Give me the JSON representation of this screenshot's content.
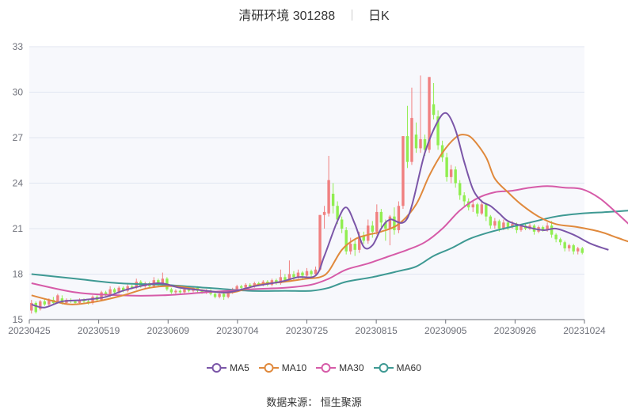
{
  "title": {
    "name": "清研环境",
    "code": "301288",
    "period": "日K"
  },
  "legend": [
    {
      "key": "ma5",
      "label": "MA5",
      "color": "#7b56a8"
    },
    {
      "key": "ma10",
      "label": "MA10",
      "color": "#e0893c"
    },
    {
      "key": "ma30",
      "label": "MA30",
      "color": "#d65ba8"
    },
    {
      "key": "ma60",
      "label": "MA60",
      "color": "#3e9993"
    }
  ],
  "source": "数据来源：  恒生聚源",
  "chart_data": {
    "type": "candlestick",
    "ylim": [
      15,
      33
    ],
    "yticks": [
      15,
      18,
      21,
      24,
      27,
      30,
      33
    ],
    "xticks": [
      "20230425",
      "20230519",
      "20230609",
      "20230704",
      "20230725",
      "20230815",
      "20230905",
      "20230926",
      "20231024"
    ],
    "up_color": "#f08080",
    "down_color": "#90ee50",
    "grid": true,
    "legend_position": "bottom",
    "candles": [
      [
        15.6,
        16.1,
        16.3,
        15.4
      ],
      [
        16.1,
        15.5,
        16.2,
        15.4
      ],
      [
        15.7,
        16.2,
        16.3,
        15.6
      ],
      [
        16.2,
        16.0,
        16.4,
        15.9
      ],
      [
        16.0,
        16.3,
        16.4,
        15.9
      ],
      [
        16.3,
        16.1,
        16.5,
        16.0
      ],
      [
        16.2,
        16.6,
        16.7,
        16.1
      ],
      [
        16.4,
        16.1,
        16.6,
        16.0
      ],
      [
        16.1,
        16.3,
        16.4,
        16.0
      ],
      [
        16.3,
        16.2,
        16.4,
        16.1
      ],
      [
        16.2,
        16.1,
        16.3,
        16.0
      ],
      [
        16.1,
        16.3,
        16.4,
        16.0
      ],
      [
        16.3,
        16.2,
        16.4,
        16.1
      ],
      [
        16.2,
        16.1,
        16.3,
        16.0
      ],
      [
        16.1,
        16.5,
        16.6,
        16.0
      ],
      [
        16.5,
        16.3,
        16.6,
        16.2
      ],
      [
        16.3,
        16.8,
        16.9,
        16.2
      ],
      [
        16.8,
        16.6,
        16.9,
        16.5
      ],
      [
        16.6,
        17.0,
        17.2,
        16.5
      ],
      [
        17.0,
        16.8,
        17.1,
        16.7
      ],
      [
        16.8,
        17.1,
        17.2,
        16.7
      ],
      [
        17.1,
        16.9,
        17.2,
        16.8
      ],
      [
        16.9,
        17.2,
        17.4,
        16.8
      ],
      [
        17.2,
        17.1,
        17.3,
        17.0
      ],
      [
        17.1,
        17.5,
        17.7,
        17.0
      ],
      [
        17.5,
        17.2,
        17.6,
        17.1
      ],
      [
        17.2,
        17.4,
        17.5,
        17.1
      ],
      [
        17.4,
        17.2,
        17.5,
        17.1
      ],
      [
        17.2,
        17.6,
        17.8,
        17.1
      ],
      [
        17.6,
        17.3,
        17.7,
        17.2
      ],
      [
        17.3,
        17.7,
        18.1,
        17.2
      ],
      [
        17.7,
        17.0,
        17.8,
        16.9
      ],
      [
        17.0,
        16.8,
        17.1,
        16.7
      ],
      [
        16.8,
        16.9,
        17.0,
        16.7
      ],
      [
        16.9,
        16.8,
        17.0,
        16.7
      ],
      [
        16.8,
        17.0,
        17.1,
        16.7
      ],
      [
        17.0,
        16.9,
        17.1,
        16.8
      ],
      [
        16.9,
        17.1,
        17.2,
        16.8
      ],
      [
        17.1,
        16.9,
        17.2,
        16.8
      ],
      [
        16.9,
        16.8,
        17.0,
        16.7
      ],
      [
        16.8,
        16.9,
        17.0,
        16.7
      ],
      [
        16.9,
        16.7,
        17.0,
        16.6
      ],
      [
        16.7,
        16.5,
        16.8,
        16.4
      ],
      [
        16.5,
        16.7,
        16.8,
        16.4
      ],
      [
        16.7,
        16.5,
        16.8,
        16.3
      ],
      [
        16.5,
        16.8,
        16.9,
        16.4
      ],
      [
        16.8,
        17.0,
        17.1,
        16.7
      ],
      [
        17.0,
        17.2,
        17.3,
        16.9
      ],
      [
        17.2,
        17.1,
        17.3,
        17.0
      ],
      [
        17.1,
        17.3,
        17.4,
        17.0
      ],
      [
        17.3,
        17.2,
        17.4,
        17.1
      ],
      [
        17.2,
        17.4,
        17.5,
        17.1
      ],
      [
        17.4,
        17.3,
        17.5,
        17.2
      ],
      [
        17.3,
        17.5,
        17.6,
        17.2
      ],
      [
        17.5,
        17.3,
        17.6,
        17.2
      ],
      [
        17.3,
        17.6,
        17.7,
        17.2
      ],
      [
        17.6,
        17.4,
        17.7,
        17.3
      ],
      [
        17.4,
        17.8,
        18.3,
        17.3
      ],
      [
        17.8,
        17.6,
        18.0,
        17.5
      ],
      [
        17.6,
        18.0,
        18.9,
        17.5
      ],
      [
        18.0,
        17.8,
        18.2,
        17.6
      ],
      [
        17.8,
        18.1,
        18.3,
        17.7
      ],
      [
        18.1,
        17.9,
        18.2,
        17.6
      ],
      [
        17.9,
        18.2,
        18.4,
        17.7
      ],
      [
        18.2,
        18.0,
        18.3,
        17.8
      ],
      [
        18.0,
        18.3,
        18.5,
        17.9
      ],
      [
        18.3,
        21.9,
        21.9,
        18.2
      ],
      [
        21.9,
        22.1,
        22.5,
        21.0
      ],
      [
        22.0,
        24.2,
        25.8,
        21.8
      ],
      [
        23.3,
        22.5,
        24.0,
        22.0
      ],
      [
        22.5,
        21.6,
        22.8,
        21.3
      ],
      [
        21.6,
        21.0,
        21.8,
        20.7
      ],
      [
        20.9,
        19.5,
        21.1,
        19.3
      ],
      [
        19.5,
        20.0,
        20.4,
        19.3
      ],
      [
        20.0,
        19.6,
        20.3,
        19.2
      ],
      [
        19.6,
        20.5,
        20.8,
        19.4
      ],
      [
        20.5,
        20.2,
        20.8,
        20.0
      ],
      [
        20.2,
        21.2,
        21.6,
        20.0
      ],
      [
        21.2,
        20.8,
        21.5,
        20.4
      ],
      [
        20.8,
        22.1,
        22.6,
        20.6
      ],
      [
        22.1,
        21.4,
        22.3,
        21.1
      ],
      [
        21.4,
        21.0,
        21.6,
        20.2
      ],
      [
        21.0,
        21.8,
        21.9,
        19.9
      ],
      [
        21.8,
        20.9,
        22.4,
        20.6
      ],
      [
        20.9,
        22.5,
        22.8,
        20.7
      ],
      [
        22.5,
        27.1,
        27.1,
        22.3
      ],
      [
        27.1,
        25.4,
        29.1,
        25.0
      ],
      [
        25.4,
        28.3,
        30.3,
        25.2
      ],
      [
        27.2,
        26.3,
        28.0,
        26.0
      ],
      [
        26.3,
        26.9,
        31.1,
        26.0
      ],
      [
        26.9,
        26.2,
        27.2,
        25.8
      ],
      [
        26.2,
        31.0,
        31.0,
        26.0
      ],
      [
        29.2,
        28.5,
        30.6,
        28.2
      ],
      [
        28.4,
        26.5,
        28.8,
        26.2
      ],
      [
        26.5,
        25.7,
        26.8,
        25.4
      ],
      [
        25.7,
        24.4,
        26.0,
        24.1
      ],
      [
        24.4,
        24.9,
        25.2,
        24.0
      ],
      [
        24.9,
        24.0,
        25.1,
        23.7
      ],
      [
        24.0,
        23.2,
        24.2,
        22.9
      ],
      [
        23.2,
        22.8,
        23.4,
        22.5
      ],
      [
        22.8,
        22.4,
        23.0,
        22.2
      ],
      [
        22.4,
        22.6,
        22.8,
        22.1
      ],
      [
        22.6,
        22.0,
        22.7,
        21.8
      ],
      [
        22.0,
        22.6,
        22.9,
        21.9
      ],
      [
        22.6,
        21.8,
        22.7,
        21.5
      ],
      [
        21.8,
        21.2,
        21.9,
        21.0
      ],
      [
        21.2,
        21.5,
        21.7,
        21.0
      ],
      [
        21.5,
        21.0,
        21.6,
        20.8
      ],
      [
        21.0,
        21.4,
        21.6,
        20.9
      ],
      [
        21.4,
        21.1,
        21.5,
        20.9
      ],
      [
        21.1,
        21.3,
        21.5,
        21.0
      ],
      [
        21.3,
        20.9,
        21.4,
        20.7
      ],
      [
        20.9,
        21.2,
        21.3,
        20.8
      ],
      [
        21.2,
        21.0,
        21.3,
        20.9
      ],
      [
        21.0,
        21.2,
        21.4,
        20.9
      ],
      [
        21.2,
        20.8,
        21.3,
        20.6
      ],
      [
        20.8,
        21.1,
        21.2,
        20.7
      ],
      [
        21.1,
        20.9,
        21.2,
        20.8
      ],
      [
        20.9,
        21.2,
        21.4,
        20.8
      ],
      [
        21.2,
        20.6,
        21.5,
        20.4
      ],
      [
        20.6,
        20.3,
        20.7,
        20.1
      ],
      [
        20.3,
        20.1,
        20.4,
        19.9
      ],
      [
        20.1,
        19.7,
        20.2,
        19.5
      ],
      [
        19.7,
        19.9,
        20.0,
        19.5
      ],
      [
        19.9,
        19.5,
        20.0,
        19.3
      ],
      [
        19.5,
        19.7,
        19.8,
        19.3
      ],
      [
        19.7,
        19.4,
        19.8,
        19.3
      ]
    ],
    "ma5": [
      [
        0,
        16.0
      ],
      [
        3,
        15.8
      ],
      [
        7,
        16.2
      ],
      [
        12,
        16.3
      ],
      [
        17,
        16.5
      ],
      [
        22,
        17.0
      ],
      [
        29,
        17.4
      ],
      [
        34,
        17.1
      ],
      [
        40,
        16.9
      ],
      [
        45,
        16.8
      ],
      [
        51,
        17.2
      ],
      [
        57,
        17.5
      ],
      [
        61,
        17.8
      ],
      [
        65,
        17.9
      ],
      [
        67,
        19.2
      ],
      [
        70,
        21.5
      ],
      [
        72,
        22.4
      ],
      [
        74,
        21.3
      ],
      [
        76,
        19.8
      ],
      [
        78,
        19.9
      ],
      [
        80,
        21.0
      ],
      [
        82,
        21.6
      ],
      [
        86,
        21.7
      ],
      [
        90,
        26.0
      ],
      [
        93,
        28.1
      ],
      [
        95,
        28.6
      ],
      [
        97,
        27.5
      ],
      [
        99,
        25.4
      ],
      [
        101,
        23.6
      ],
      [
        103,
        22.8
      ],
      [
        105,
        22.5
      ],
      [
        107,
        22.0
      ],
      [
        109,
        21.5
      ],
      [
        112,
        21.2
      ],
      [
        117,
        20.9
      ],
      [
        120,
        21.0
      ],
      [
        124,
        20.6
      ],
      [
        128,
        20.0
      ],
      [
        132,
        19.6
      ]
    ],
    "ma10": [
      [
        0,
        16.6
      ],
      [
        4,
        16.3
      ],
      [
        9,
        16.0
      ],
      [
        15,
        16.2
      ],
      [
        21,
        16.6
      ],
      [
        27,
        17.1
      ],
      [
        33,
        17.2
      ],
      [
        40,
        16.9
      ],
      [
        46,
        16.8
      ],
      [
        52,
        17.3
      ],
      [
        58,
        17.5
      ],
      [
        63,
        17.7
      ],
      [
        66,
        17.8
      ],
      [
        68,
        18.2
      ],
      [
        71,
        19.6
      ],
      [
        74,
        20.3
      ],
      [
        77,
        20.6
      ],
      [
        80,
        20.8
      ],
      [
        84,
        21.3
      ],
      [
        88,
        22.6
      ],
      [
        91,
        24.5
      ],
      [
        94,
        26.0
      ],
      [
        97,
        27.0
      ],
      [
        99,
        27.2
      ],
      [
        101,
        26.9
      ],
      [
        104,
        25.7
      ],
      [
        106,
        24.3
      ],
      [
        109,
        23.4
      ],
      [
        112,
        22.6
      ],
      [
        116,
        21.8
      ],
      [
        120,
        21.3
      ],
      [
        125,
        21.1
      ],
      [
        130,
        20.8
      ],
      [
        134,
        20.4
      ],
      [
        137,
        20.1
      ]
    ],
    "ma30": [
      [
        0,
        17.4
      ],
      [
        10,
        16.8
      ],
      [
        20,
        16.6
      ],
      [
        30,
        16.6
      ],
      [
        40,
        16.8
      ],
      [
        50,
        17.0
      ],
      [
        58,
        17.1
      ],
      [
        64,
        17.3
      ],
      [
        68,
        17.7
      ],
      [
        72,
        18.3
      ],
      [
        77,
        18.7
      ],
      [
        82,
        19.2
      ],
      [
        86,
        19.6
      ],
      [
        90,
        20.1
      ],
      [
        94,
        21.0
      ],
      [
        98,
        22.2
      ],
      [
        102,
        23.0
      ],
      [
        106,
        23.4
      ],
      [
        110,
        23.5
      ],
      [
        114,
        23.7
      ],
      [
        118,
        23.8
      ],
      [
        122,
        23.7
      ],
      [
        126,
        23.6
      ],
      [
        130,
        23.0
      ],
      [
        134,
        22.0
      ],
      [
        137,
        21.2
      ]
    ],
    "ma60": [
      [
        0,
        18.0
      ],
      [
        10,
        17.7
      ],
      [
        20,
        17.4
      ],
      [
        30,
        17.3
      ],
      [
        40,
        17.1
      ],
      [
        50,
        16.9
      ],
      [
        58,
        16.9
      ],
      [
        64,
        16.9
      ],
      [
        68,
        17.1
      ],
      [
        72,
        17.5
      ],
      [
        78,
        17.8
      ],
      [
        84,
        18.2
      ],
      [
        88,
        18.5
      ],
      [
        92,
        19.2
      ],
      [
        96,
        19.7
      ],
      [
        100,
        20.3
      ],
      [
        104,
        20.7
      ],
      [
        108,
        21.0
      ],
      [
        114,
        21.4
      ],
      [
        120,
        21.8
      ],
      [
        126,
        22.0
      ],
      [
        132,
        22.1
      ],
      [
        137,
        22.2
      ]
    ]
  }
}
